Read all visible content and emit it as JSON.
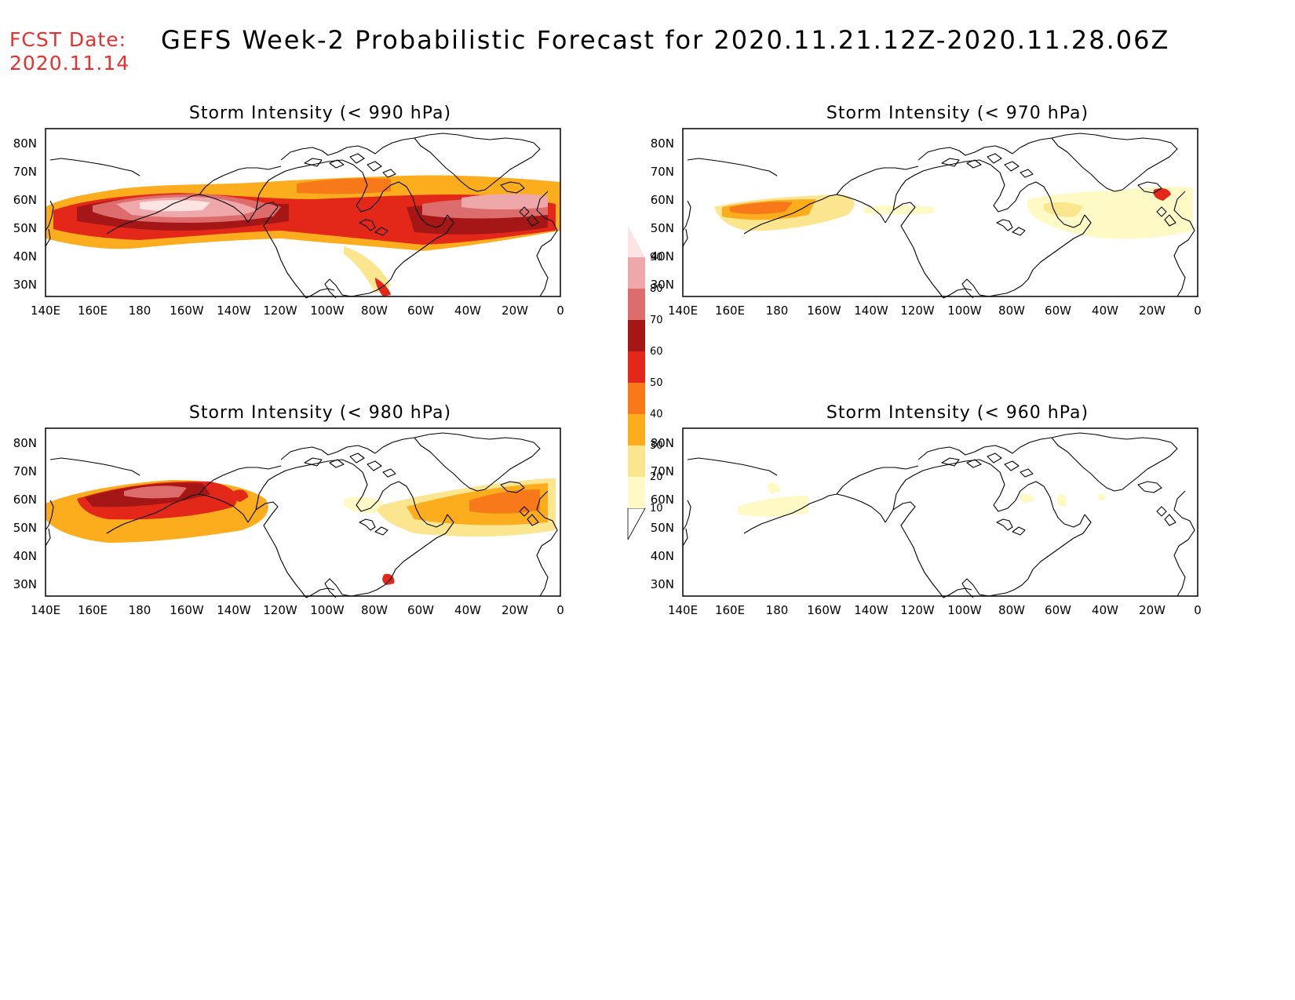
{
  "header": {
    "fcst_label": "FCST Date:",
    "fcst_date": "2020.11.14",
    "title": "GEFS Week-2 Probabilistic Forecast for 2020.11.21.12Z-2020.11.28.06Z"
  },
  "axes": {
    "lat_labels": [
      "80N",
      "70N",
      "60N",
      "50N",
      "40N",
      "30N"
    ],
    "lon_labels": [
      "140E",
      "160E",
      "180",
      "160W",
      "140W",
      "120W",
      "100W",
      "80W",
      "60W",
      "40W",
      "20W",
      "0"
    ]
  },
  "panels": [
    {
      "id": "p990",
      "title": "Storm Intensity (< 990 hPa)"
    },
    {
      "id": "p970",
      "title": "Storm Intensity (< 970 hPa)"
    },
    {
      "id": "p980",
      "title": "Storm Intensity (< 980 hPa)"
    },
    {
      "id": "p960",
      "title": "Storm Intensity (< 960 hPa)"
    }
  ],
  "colorbar": {
    "levels": [
      "10",
      "20",
      "30",
      "40",
      "50",
      "60",
      "70",
      "80",
      "90"
    ],
    "colors": [
      "#fff9c6",
      "#fbe58e",
      "#fbad1e",
      "#f7791a",
      "#e3281a",
      "#a51616",
      "#dd6c6c",
      "#efa8aa",
      "#fde4e3"
    ]
  }
}
